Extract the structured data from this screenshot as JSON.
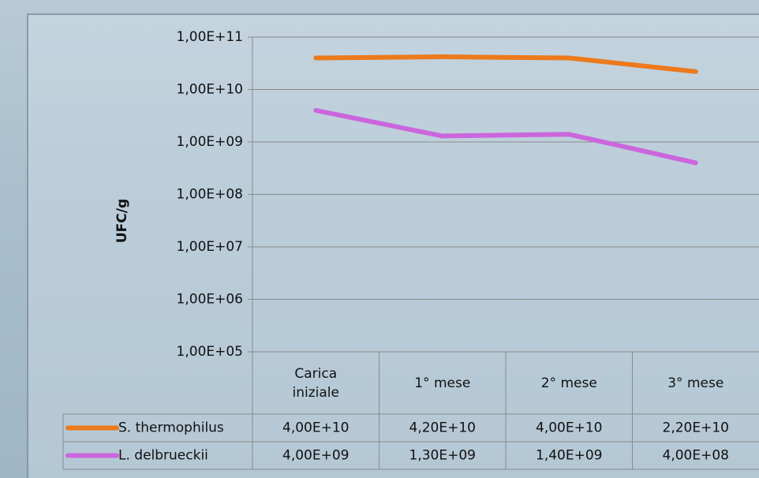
{
  "chart_data": {
    "type": "line",
    "y_label": "UFC/g",
    "categories": [
      "Carica iniziale",
      "1° mese",
      "2° mese",
      "3° mese"
    ],
    "series": [
      {
        "name": "S. thermophilus",
        "color": "#ec7a1c",
        "values": [
          40000000000,
          42000000000,
          40000000000,
          22000000000
        ],
        "value_labels": [
          "4,00E+10",
          "4,20E+10",
          "4,00E+10",
          "2,20E+10"
        ]
      },
      {
        "name": "L. delbrueckii",
        "color": "#cc66dd",
        "values": [
          4000000000,
          1300000000,
          1400000000,
          400000000
        ],
        "value_labels": [
          "4,00E+09",
          "1,30E+09",
          "1,40E+09",
          "4,00E+08"
        ]
      }
    ],
    "log_scale": true,
    "ylim": [
      100000,
      100000000000
    ],
    "yticks": [
      {
        "value": 100000000000,
        "label": "1,00E+11"
      },
      {
        "value": 10000000000,
        "label": "1,00E+10"
      },
      {
        "value": 1000000000,
        "label": "1,00E+09"
      },
      {
        "value": 100000000,
        "label": "1,00E+08"
      },
      {
        "value": 10000000,
        "label": "1,00E+07"
      },
      {
        "value": 1000000,
        "label": "1,00E+06"
      },
      {
        "value": 100000,
        "label": "1,00E+05"
      }
    ],
    "grid": true
  }
}
